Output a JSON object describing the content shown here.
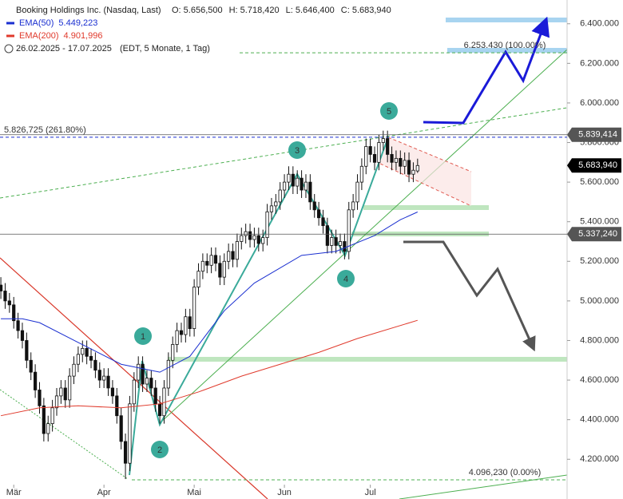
{
  "chart_data": {
    "type": "candlestick",
    "header": "Booking Holdings Inc. (Nasdaq, Last)",
    "ohlc_labels": [
      "O: 5.656,500",
      "H: 5.718,420",
      "L: 5.646,400",
      "C: 5.683,940"
    ],
    "date_range": "26.02.2025 - 17.07.2025",
    "range_note": "(EDT, 5 Monate, 1 Tag)",
    "open": [
      5080000,
      5050000,
      5000000,
      4980000,
      4900000,
      4850000,
      4800000,
      4700000,
      4640000,
      4550000,
      4470000,
      4330000,
      4380000,
      4460000,
      4520000,
      4560000,
      4500000,
      4620000,
      4680000,
      4730000,
      4760000,
      4720000,
      4700000,
      4650000,
      4600000,
      4620000,
      4560000,
      4520000,
      4420000,
      4290000,
      4180000,
      4480000,
      4600000,
      4680000,
      4580000,
      4610000,
      4560000,
      4480000,
      4420000,
      4560000,
      4700000,
      4780000,
      4850000,
      4830000,
      4920000,
      4860000,
      5070000,
      5150000,
      5200000,
      5180000,
      5230000,
      5190000,
      5120000,
      5200000,
      5250000,
      5210000,
      5300000,
      5330000,
      5350000,
      5310000,
      5330000,
      5290000,
      5320000,
      5450000,
      5480000,
      5500000,
      5560000,
      5600000,
      5640000,
      5580000,
      5620000,
      5560000,
      5600000,
      5500000,
      5460000,
      5420000,
      5380000,
      5280000,
      5320000,
      5280000,
      5300000,
      5250000,
      5460000,
      5500000,
      5600000,
      5680000,
      5780000,
      5740000,
      5700000,
      5800000,
      5820000,
      5740000,
      5700000,
      5720000,
      5680000,
      5710000,
      5640000,
      5656500
    ],
    "high": [
      5120000,
      5090000,
      5040000,
      5020000,
      4940000,
      4890000,
      4840000,
      4740000,
      4680000,
      4590000,
      4510000,
      4420000,
      4500000,
      4560000,
      4600000,
      4600000,
      4660000,
      4720000,
      4770000,
      4800000,
      4800000,
      4760000,
      4740000,
      4690000,
      4660000,
      4660000,
      4600000,
      4560000,
      4460000,
      4330000,
      4520000,
      4640000,
      4720000,
      4720000,
      4650000,
      4650000,
      4600000,
      4520000,
      4600000,
      4740000,
      4820000,
      4890000,
      4890000,
      4960000,
      4960000,
      5110000,
      5190000,
      5240000,
      5240000,
      5270000,
      5270000,
      5230000,
      5240000,
      5290000,
      5290000,
      5340000,
      5370000,
      5390000,
      5390000,
      5370000,
      5370000,
      5360000,
      5490000,
      5520000,
      5540000,
      5600000,
      5640000,
      5680000,
      5680000,
      5660000,
      5660000,
      5640000,
      5640000,
      5540000,
      5500000,
      5460000,
      5420000,
      5360000,
      5360000,
      5340000,
      5340000,
      5500000,
      5540000,
      5640000,
      5720000,
      5820000,
      5820000,
      5780000,
      5840000,
      5860000,
      5860000,
      5780000,
      5760000,
      5760000,
      5750000,
      5750000,
      5700000,
      5718420
    ],
    "low": [
      5010000,
      4960000,
      4940000,
      4860000,
      4810000,
      4760000,
      4660000,
      4600000,
      4510000,
      4430000,
      4290000,
      4290000,
      4340000,
      4420000,
      4480000,
      4460000,
      4460000,
      4580000,
      4640000,
      4690000,
      4680000,
      4660000,
      4610000,
      4560000,
      4560000,
      4520000,
      4480000,
      4380000,
      4250000,
      4100000,
      4140000,
      4440000,
      4560000,
      4540000,
      4540000,
      4520000,
      4440000,
      4380000,
      4380000,
      4520000,
      4660000,
      4740000,
      4790000,
      4790000,
      4820000,
      4820000,
      5030000,
      5110000,
      5140000,
      5140000,
      5150000,
      5080000,
      5080000,
      5160000,
      5170000,
      5170000,
      5260000,
      5290000,
      5270000,
      5270000,
      5250000,
      5250000,
      5280000,
      5410000,
      5440000,
      5460000,
      5520000,
      5560000,
      5540000,
      5540000,
      5520000,
      5520000,
      5460000,
      5420000,
      5380000,
      5340000,
      5240000,
      5240000,
      5240000,
      5240000,
      5210000,
      5210000,
      5420000,
      5460000,
      5560000,
      5640000,
      5700000,
      5660000,
      5660000,
      5760000,
      5700000,
      5660000,
      5660000,
      5640000,
      5640000,
      5600000,
      5600000,
      5646400
    ],
    "close": [
      5050000,
      5000000,
      4980000,
      4900000,
      4850000,
      4800000,
      4700000,
      4640000,
      4550000,
      4470000,
      4330000,
      4380000,
      4460000,
      4520000,
      4560000,
      4500000,
      4620000,
      4680000,
      4730000,
      4760000,
      4720000,
      4700000,
      4650000,
      4600000,
      4620000,
      4560000,
      4520000,
      4420000,
      4290000,
      4180000,
      4480000,
      4600000,
      4680000,
      4580000,
      4610000,
      4560000,
      4480000,
      4420000,
      4560000,
      4700000,
      4780000,
      4850000,
      4830000,
      4920000,
      4860000,
      5070000,
      5150000,
      5200000,
      5180000,
      5230000,
      5190000,
      5120000,
      5200000,
      5250000,
      5210000,
      5300000,
      5330000,
      5350000,
      5310000,
      5330000,
      5290000,
      5320000,
      5450000,
      5480000,
      5500000,
      5560000,
      5600000,
      5640000,
      5580000,
      5620000,
      5560000,
      5600000,
      5500000,
      5460000,
      5420000,
      5380000,
      5280000,
      5320000,
      5280000,
      5300000,
      5250000,
      5460000,
      5500000,
      5600000,
      5680000,
      5780000,
      5740000,
      5700000,
      5800000,
      5820000,
      5740000,
      5700000,
      5720000,
      5680000,
      5710000,
      5640000,
      5660000,
      5683940
    ],
    "series": [
      {
        "name": "EMA(50)",
        "value_label": "5.449,223",
        "color": "#1a2fd0",
        "x": [
          0,
          5,
          9,
          18,
          28,
          37,
          44,
          52,
          59,
          70,
          78,
          87,
          93,
          97
        ],
        "values": [
          4910000,
          4910000,
          4890000,
          4790000,
          4680000,
          4640000,
          4720000,
          4950000,
          5090000,
          5230000,
          5250000,
          5330000,
          5410000,
          5449223
        ]
      },
      {
        "name": "EMA(200)",
        "value_label": "4.901,996",
        "color": "#e03a2c",
        "x": [
          0,
          9,
          18,
          28,
          37,
          46,
          56,
          65,
          74,
          83,
          97
        ],
        "values": [
          4420000,
          4460000,
          4470000,
          4460000,
          4480000,
          4540000,
          4620000,
          4680000,
          4740000,
          4810000,
          4901996
        ]
      }
    ],
    "levels": [
      {
        "label": "6.253.430 (100.00%)",
        "value": 6253430,
        "color": "#4caf50"
      },
      {
        "label": "5.826,725 (261.80%)",
        "value": 5826725,
        "color": "#1a2fd0"
      },
      {
        "label": "4.096,230 (0.00%)",
        "value": 4096230,
        "color": "#4caf50"
      }
    ],
    "price_tags": [
      {
        "label": "5.839,414",
        "value": 5839414,
        "color": "#555555"
      },
      {
        "label": "5.683,940",
        "value": 5683940,
        "color": "#000000"
      },
      {
        "label": "5.337,240",
        "value": 5337240,
        "color": "#555555"
      }
    ],
    "waves": [
      "1",
      "2",
      "3",
      "4",
      "5"
    ],
    "xlim": [
      -0.2,
      131.8
    ],
    "xticks": [
      {
        "value": 3,
        "label": "Mär"
      },
      {
        "value": 24,
        "label": "Apr"
      },
      {
        "value": 45,
        "label": "Mai"
      },
      {
        "value": 66,
        "label": "Jun"
      },
      {
        "value": 86,
        "label": "Jul"
      }
    ],
    "ylim": [
      4080000,
      6520000
    ],
    "yticks": [
      {
        "value": 4200000,
        "label": "4.200.000"
      },
      {
        "value": 4400000,
        "label": "4.400.000"
      },
      {
        "value": 4600000,
        "label": "4.600.000"
      },
      {
        "value": 4800000,
        "label": "4.800.000"
      },
      {
        "value": 5000000,
        "label": "5.000.000"
      },
      {
        "value": 5200000,
        "label": "5.200.000"
      },
      {
        "value": 5400000,
        "label": "5.400.000"
      },
      {
        "value": 5600000,
        "label": "5.600.000"
      },
      {
        "value": 5800000,
        "label": "5.800.000"
      },
      {
        "value": 6000000,
        "label": "6.000.000"
      },
      {
        "value": 6200000,
        "label": "6.200.000"
      },
      {
        "value": 6400000,
        "label": "6.400.000"
      }
    ]
  }
}
